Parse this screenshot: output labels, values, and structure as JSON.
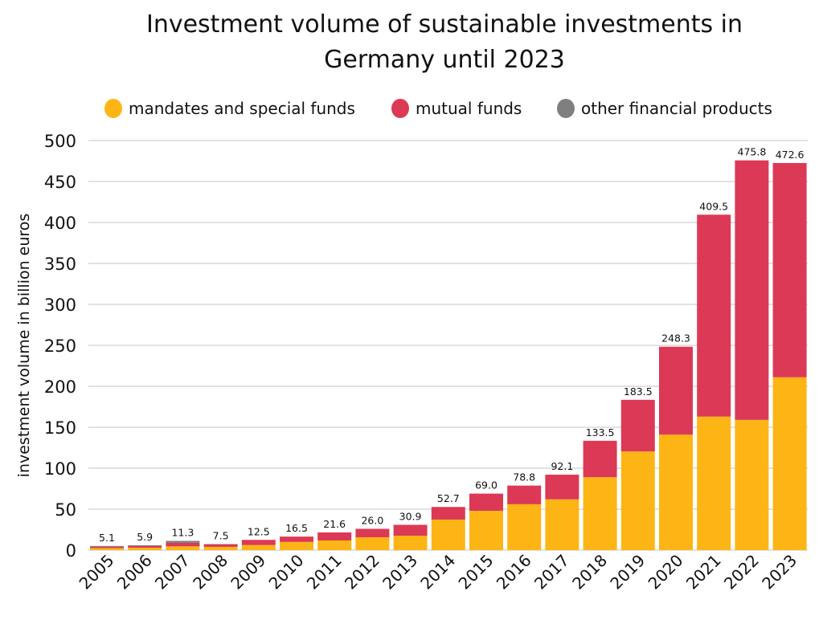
{
  "chart_data": {
    "type": "bar",
    "stacked": true,
    "title": [
      "Investment volume of sustainable investments in",
      "Germany until 2023"
    ],
    "ylabel": "investment volume in billion euros",
    "xlabel": "",
    "ylim": [
      0,
      500
    ],
    "yticks": [
      0,
      50,
      100,
      150,
      200,
      250,
      300,
      350,
      400,
      450,
      500
    ],
    "grid": true,
    "legend_position": "top",
    "categories": [
      "2005",
      "2006",
      "2007",
      "2008",
      "2009",
      "2010",
      "2011",
      "2012",
      "2013",
      "2014",
      "2015",
      "2016",
      "2017",
      "2018",
      "2019",
      "2020",
      "2021",
      "2022",
      "2023"
    ],
    "totals": [
      "5.1",
      "5.9",
      "11.3",
      "7.5",
      "12.5",
      "16.5",
      "21.6",
      "26.0",
      "30.9",
      "52.7",
      "69.0",
      "78.8",
      "92.1",
      "133.5",
      "183.5",
      "248.3",
      "409.5",
      "475.8",
      "472.6"
    ],
    "series": [
      {
        "name": "mandates and special funds",
        "color": "#FDB515",
        "values": [
          2.5,
          3,
          4.6,
          4,
          6.2,
          10,
          11.8,
          15.7,
          17.6,
          37.3,
          48,
          56,
          62,
          89,
          120.5,
          141,
          163,
          159,
          211
        ]
      },
      {
        "name": "mutual funds",
        "color": "#DC3956",
        "values": [
          1.5,
          1.9,
          4.3,
          3,
          6.3,
          6.5,
          9.8,
          10.3,
          13.3,
          15.4,
          21,
          22.8,
          30.1,
          44.5,
          63,
          107.3,
          246.5,
          316.8,
          261.6
        ]
      },
      {
        "name": "other financial products",
        "color": "#7F7F7F",
        "values": [
          1.1,
          1,
          2.4,
          0.5,
          0,
          0,
          0,
          0,
          0,
          0,
          0,
          0,
          0,
          0,
          0,
          0,
          0,
          0,
          0
        ]
      }
    ]
  }
}
